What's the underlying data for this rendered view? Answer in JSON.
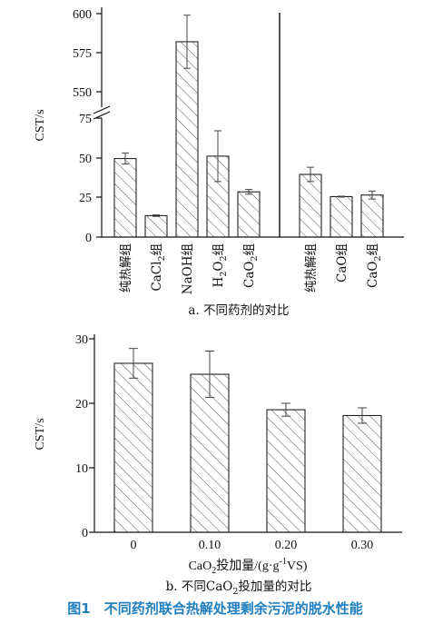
{
  "chart_data": [
    {
      "type": "bar",
      "panel_label": "a. 不同药剂的对比",
      "ylabel": "CST/s",
      "y_ticks": [
        "0",
        "25",
        "50",
        "75",
        "550",
        "575",
        "600"
      ],
      "y_break": true,
      "groups": [
        {
          "categories": [
            "纯热解组",
            "CaCl2组",
            "NaOH组",
            "H2O2组",
            "CaO2组"
          ],
          "values": [
            49.5,
            13.5,
            582,
            51,
            28.5
          ],
          "errors": [
            3.5,
            0.5,
            17,
            16,
            1.5
          ]
        },
        {
          "categories": [
            "纯热解组",
            "CaO组",
            "CaO2组"
          ],
          "values": [
            39.5,
            25.5,
            26.5
          ],
          "errors": [
            4.5,
            0.3,
            2.5
          ]
        }
      ]
    },
    {
      "type": "bar",
      "panel_label": "b. 不同CaO2投加量的对比",
      "ylabel": "CST/s",
      "xlabel": "CaO2投加量/(g·g-1VS)",
      "categories": [
        "0",
        "0.10",
        "0.20",
        "0.30"
      ],
      "values": [
        26.2,
        24.5,
        19.0,
        18.1
      ],
      "errors": [
        2.3,
        3.6,
        1.0,
        1.2
      ],
      "ylim": [
        0,
        30
      ],
      "y_ticks": [
        0,
        10,
        20,
        30
      ]
    }
  ],
  "figure_caption": "图1　不同药剂联合热解处理剩余污泥的脱水性能"
}
